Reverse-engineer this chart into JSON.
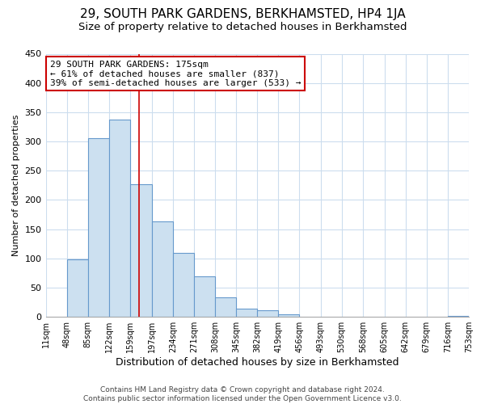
{
  "title": "29, SOUTH PARK GARDENS, BERKHAMSTED, HP4 1JA",
  "subtitle": "Size of property relative to detached houses in Berkhamsted",
  "xlabel": "Distribution of detached houses by size in Berkhamsted",
  "ylabel": "Number of detached properties",
  "bar_edges": [
    11,
    48,
    85,
    122,
    159,
    197,
    234,
    271,
    308,
    345,
    382,
    419,
    456,
    493,
    530,
    568,
    605,
    642,
    679,
    716,
    753
  ],
  "bar_heights": [
    0,
    98,
    305,
    337,
    227,
    163,
    109,
    69,
    34,
    14,
    11,
    5,
    0,
    0,
    0,
    0,
    0,
    0,
    0,
    2
  ],
  "bar_color": "#cce0f0",
  "bar_edge_color": "#6699cc",
  "property_size": 175,
  "property_line_color": "#cc0000",
  "annotation_line1": "29 SOUTH PARK GARDENS: 175sqm",
  "annotation_line2": "← 61% of detached houses are smaller (837)",
  "annotation_line3": "39% of semi-detached houses are larger (533) →",
  "annotation_box_color": "#ffffff",
  "annotation_border_color": "#cc0000",
  "tick_labels": [
    "11sqm",
    "48sqm",
    "85sqm",
    "122sqm",
    "159sqm",
    "197sqm",
    "234sqm",
    "271sqm",
    "308sqm",
    "345sqm",
    "382sqm",
    "419sqm",
    "456sqm",
    "493sqm",
    "530sqm",
    "568sqm",
    "605sqm",
    "642sqm",
    "679sqm",
    "716sqm",
    "753sqm"
  ],
  "ylim": [
    0,
    450
  ],
  "yticks": [
    0,
    50,
    100,
    150,
    200,
    250,
    300,
    350,
    400,
    450
  ],
  "footer_text": "Contains HM Land Registry data © Crown copyright and database right 2024.\nContains public sector information licensed under the Open Government Licence v3.0.",
  "title_fontsize": 11,
  "subtitle_fontsize": 9.5,
  "xlabel_fontsize": 9,
  "ylabel_fontsize": 8,
  "tick_fontsize": 7,
  "ytick_fontsize": 8,
  "footer_fontsize": 6.5,
  "bg_color": "#ffffff",
  "plot_bg_color": "#ffffff",
  "grid_color": "#ccddee"
}
